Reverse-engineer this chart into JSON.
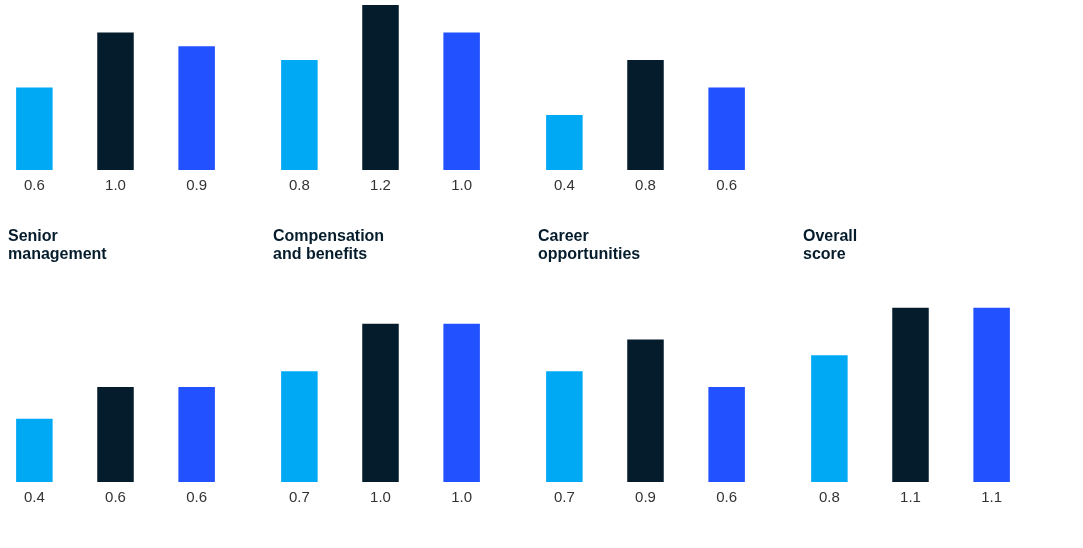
{
  "chart_data": [
    {
      "type": "bar",
      "categories": [
        null,
        null,
        null
      ],
      "values": [
        0.6,
        1.0,
        0.9
      ],
      "value_labels": [
        "0.6",
        "1.0",
        "0.9"
      ],
      "colors": [
        "#00a9f4",
        "#051c2c",
        "#2251ff"
      ]
    },
    {
      "type": "bar",
      "categories": [
        null,
        null,
        null
      ],
      "values": [
        0.8,
        1.2,
        1.0
      ],
      "value_labels": [
        "0.8",
        "1.2",
        "1.0"
      ],
      "colors": [
        "#00a9f4",
        "#051c2c",
        "#2251ff"
      ]
    },
    {
      "type": "bar",
      "categories": [
        null,
        null,
        null
      ],
      "values": [
        0.4,
        0.8,
        0.6
      ],
      "value_labels": [
        "0.4",
        "0.8",
        "0.6"
      ],
      "colors": [
        "#00a9f4",
        "#051c2c",
        "#2251ff"
      ]
    },
    {
      "type": "bar",
      "title": "Senior management",
      "categories": [
        null,
        null,
        null
      ],
      "values": [
        0.4,
        0.6,
        0.6
      ],
      "value_labels": [
        "0.4",
        "0.6",
        "0.6"
      ],
      "colors": [
        "#00a9f4",
        "#051c2c",
        "#2251ff"
      ]
    },
    {
      "type": "bar",
      "title": "Compensation and benefits",
      "categories": [
        null,
        null,
        null
      ],
      "values": [
        0.7,
        1.0,
        1.0
      ],
      "value_labels": [
        "0.7",
        "1.0",
        "1.0"
      ],
      "colors": [
        "#00a9f4",
        "#051c2c",
        "#2251ff"
      ]
    },
    {
      "type": "bar",
      "title": "Career opportunities",
      "categories": [
        null,
        null,
        null
      ],
      "values": [
        0.7,
        0.9,
        0.6
      ],
      "value_labels": [
        "0.7",
        "0.9",
        "0.6"
      ],
      "colors": [
        "#00a9f4",
        "#051c2c",
        "#2251ff"
      ]
    },
    {
      "type": "bar",
      "title": "Overall score",
      "categories": [
        null,
        null,
        null
      ],
      "values": [
        0.8,
        1.1,
        1.1
      ],
      "value_labels": [
        "0.8",
        "1.1",
        "1.1"
      ],
      "colors": [
        "#00a9f4",
        "#051c2c",
        "#2251ff"
      ]
    }
  ]
}
